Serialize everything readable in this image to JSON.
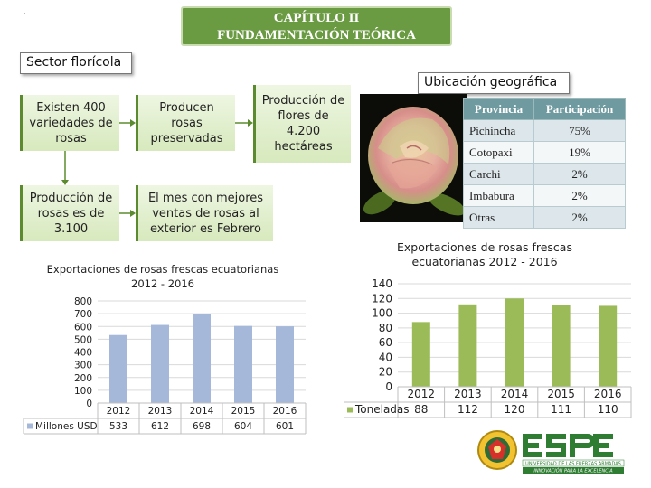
{
  "header": {
    "line1": "CAPÍTULO II",
    "line2": "FUNDAMENTACIÓN TEÓRICA"
  },
  "section_label": "Sector florícola",
  "location_label": "Ubicación geográfica",
  "info_boxes": {
    "varieties": "Existen 400 variedades de rosas",
    "preserved": "Producen rosas preservadas",
    "area": "Producción de flores de 4.200 hectáreas",
    "production": "Producción de rosas es de 3.100",
    "best_month": "El mes con mejores ventas de rosas al exterior es Febrero"
  },
  "location_table": {
    "headers": [
      "Provincia",
      "Participación"
    ],
    "rows": [
      [
        "Pichincha",
        "75%"
      ],
      [
        "Cotopaxi",
        "19%"
      ],
      [
        "Carchi",
        "2%"
      ],
      [
        "Imbabura",
        "2%"
      ],
      [
        "Otras",
        "2%"
      ]
    ]
  },
  "chart_data": [
    {
      "type": "bar",
      "title": "Exportaciones de rosas frescas ecuatorianas 2012 - 2016",
      "categories": [
        "2012",
        "2013",
        "2014",
        "2015",
        "2016"
      ],
      "series": [
        {
          "name": "Millones USD",
          "values": [
            533,
            612,
            698,
            604,
            601
          ],
          "color": "#a5b8d9"
        }
      ],
      "ylim": [
        0,
        800
      ],
      "yticks": [
        0,
        100,
        200,
        300,
        400,
        500,
        600,
        700,
        800
      ],
      "grid": true,
      "legend": "bottom-left data table"
    },
    {
      "type": "bar",
      "title": "Exportaciones de rosas frescas ecuatorianas 2012 - 2016",
      "categories": [
        "2012",
        "2013",
        "2014",
        "2015",
        "2016"
      ],
      "series": [
        {
          "name": "Toneladas",
          "values": [
            88,
            112,
            120,
            111,
            110
          ],
          "color": "#9bbb59"
        }
      ],
      "ylim": [
        0,
        140
      ],
      "yticks": [
        0,
        20,
        40,
        60,
        80,
        100,
        120,
        140
      ],
      "grid": true,
      "legend": "bottom-left data table"
    }
  ],
  "logo": {
    "name": "ESPE",
    "subtitle": "UNIVERSIDAD DE LAS FUERZAS ARMADAS",
    "tagline": "INNOVACIÓN PARA LA EXCELENCIA"
  },
  "colors": {
    "accent_green": "#6a9a42",
    "table_header": "#6f9aa0",
    "bar_blue": "#a5b8d9",
    "bar_green": "#9bbb59"
  }
}
